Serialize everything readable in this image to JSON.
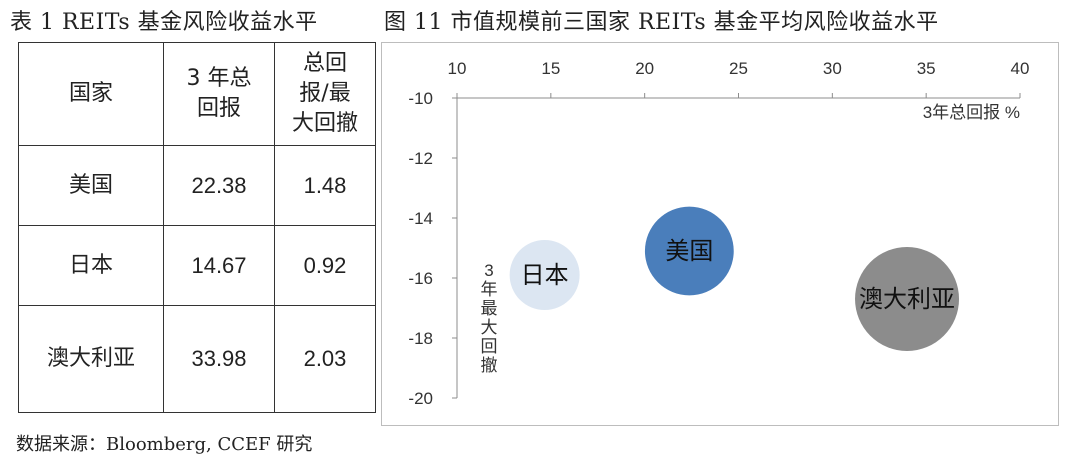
{
  "table_title": "表 1 REITs 基金风险收益水平",
  "chart_title": "图 11 市值规模前三国家 REITs 基金平均风险收益水平",
  "source": "数据来源：Bloomberg, CCEF 研究",
  "table": {
    "headers": [
      "国家",
      "3 年总回报",
      "总回报/最大回撤"
    ],
    "rows": [
      {
        "country": "美国",
        "return_3y": "22.38",
        "ratio": "1.48"
      },
      {
        "country": "日本",
        "return_3y": "14.67",
        "ratio": "0.92"
      },
      {
        "country": "澳大利亚",
        "return_3y": "33.98",
        "ratio": "2.03"
      }
    ]
  },
  "chart_data": {
    "type": "scatter",
    "title": "",
    "xlabel": "3年总回报 %",
    "ylabel": "3年最大回撤",
    "xlim": [
      10,
      40
    ],
    "ylim": [
      -20,
      -10
    ],
    "xticks": [
      "10",
      "15",
      "20",
      "25",
      "30",
      "35",
      "40"
    ],
    "yticks": [
      "-10",
      "-12",
      "-14",
      "-16",
      "-18",
      "-20"
    ],
    "points": [
      {
        "label": "日本",
        "x": 14.67,
        "y": -15.9,
        "size": 0.92,
        "color": "#dce6f2",
        "text_color": "#111111"
      },
      {
        "label": "美国",
        "x": 22.38,
        "y": -15.1,
        "size": 1.48,
        "color": "#4a7ebb",
        "text_color": "#111111"
      },
      {
        "label": "澳大利亚",
        "x": 33.98,
        "y": -16.7,
        "size": 2.03,
        "color": "#8c8c8c",
        "text_color": "#111111"
      }
    ],
    "grid": false,
    "x_axis_position": "top"
  }
}
